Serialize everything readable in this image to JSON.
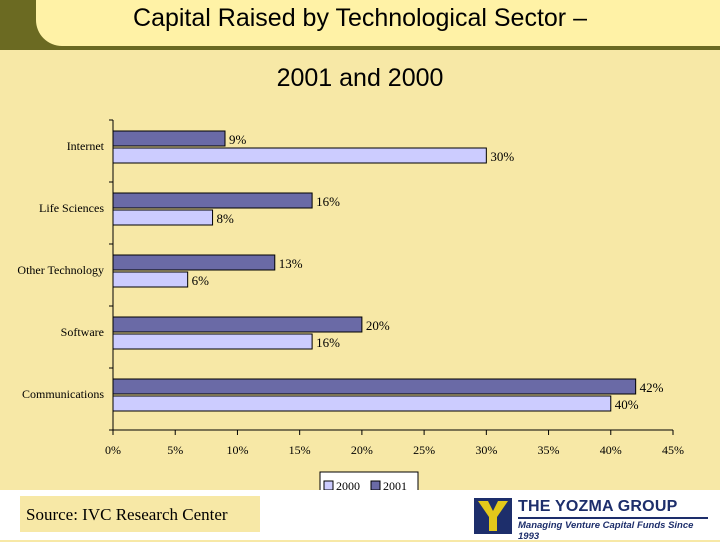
{
  "header": {
    "title_line1": "Capital Raised by Technological Sector –",
    "title_line2": "2001 and 2000"
  },
  "chart_data": {
    "type": "bar",
    "orientation": "horizontal",
    "categories": [
      "Internet",
      "Life Sciences",
      "Other Technology",
      "Software",
      "Communications"
    ],
    "series": [
      {
        "name": "2001",
        "values": [
          9,
          16,
          13,
          20,
          42
        ],
        "labels": [
          "9%",
          "16%",
          "13%",
          "20%",
          "42%"
        ],
        "color": "#6a6aa6"
      },
      {
        "name": "2000",
        "values": [
          30,
          8,
          6,
          16,
          40
        ],
        "labels": [
          "30%",
          "8%",
          "6%",
          "16%",
          "40%"
        ],
        "color": "#ccccff"
      }
    ],
    "xlim": [
      0,
      45
    ],
    "x_ticks": [
      "0%",
      "5%",
      "10%",
      "15%",
      "20%",
      "25%",
      "30%",
      "35%",
      "40%",
      "45%"
    ],
    "legend": {
      "placement": "bottom",
      "entries": [
        "2000",
        "2001"
      ]
    },
    "grid": false
  },
  "footer": {
    "source": "Source: IVC Research Center",
    "logo_name": "THE YOZMA GROUP",
    "logo_tagline": "Managing Venture Capital Funds Since 1993"
  },
  "colors": {
    "background": "#f7e8a6",
    "header_band": "#6b6a22",
    "logo_navy": "#1d2e6b",
    "logo_yellow": "#e3c81a"
  }
}
